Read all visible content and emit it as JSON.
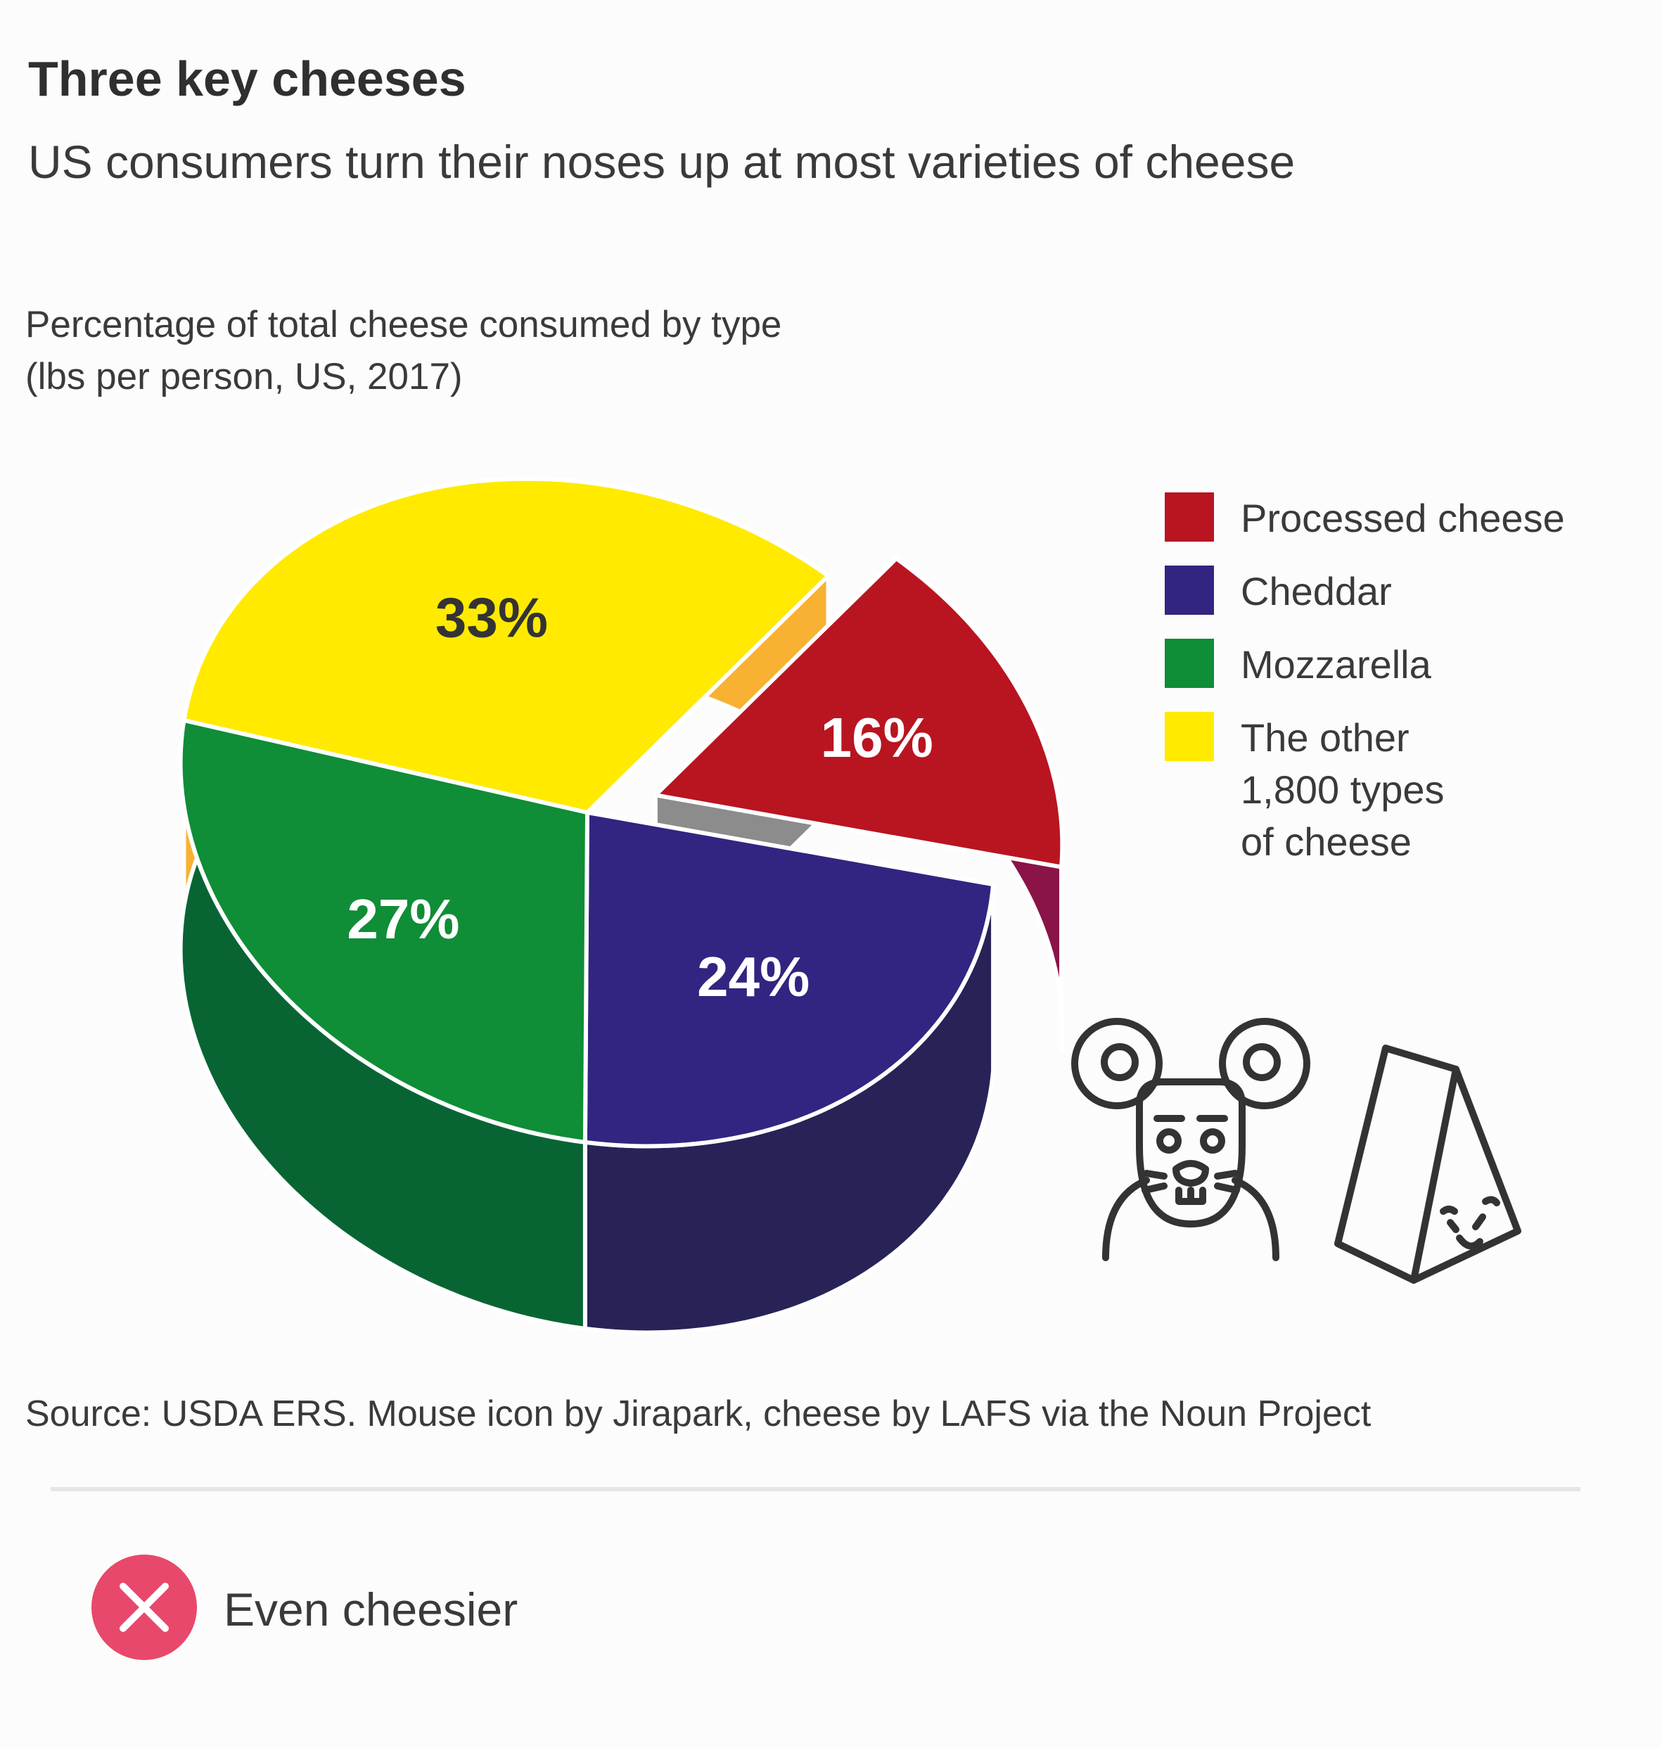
{
  "header": {
    "title": "Three key cheeses",
    "subtitle": "US consumers turn their noses up at most varieties of cheese"
  },
  "chart_heading": {
    "line1": "Percentage of total cheese consumed by type",
    "line2": "(lbs per person, US, 2017)"
  },
  "chart_data": {
    "type": "pie",
    "style": "3d-exploded",
    "title": "Percentage of total cheese consumed by type (lbs per person, US, 2017)",
    "unit": "%",
    "slices": [
      {
        "label": "Processed cheese",
        "value": 16,
        "display": "16%",
        "color": "#b81521",
        "side_color": "#8a1447",
        "exploded": true
      },
      {
        "label": "Cheddar",
        "value": 24,
        "display": "24%",
        "color": "#312581",
        "side_color": "#272357",
        "exploded": false
      },
      {
        "label": "Mozzarella",
        "value": 27,
        "display": "27%",
        "color": "#0f8d37",
        "side_color": "#086533",
        "exploded": false
      },
      {
        "label": "The other 1,800 types of cheese",
        "value": 33,
        "display": "33%",
        "color": "#ffea00",
        "side_color": "#f8b132",
        "exploded": false
      }
    ],
    "legend_position": "right"
  },
  "legend": [
    {
      "label": "Processed cheese",
      "color": "#b81521"
    },
    {
      "label": "Cheddar",
      "color": "#312581"
    },
    {
      "label": "Mozzarella",
      "color": "#0f8d37"
    },
    {
      "label": "The other\n1,800 types\nof cheese",
      "color": "#ffea00"
    }
  ],
  "icons": [
    "mouse-icon",
    "cheese-wedge-icon"
  ],
  "source": "Source: USDA ERS. Mouse icon by Jirapark, cheese by LAFS via the Noun Project",
  "footer": {
    "badge_icon": "close-icon",
    "badge_color": "#e8486b",
    "text": "Even cheesier"
  }
}
